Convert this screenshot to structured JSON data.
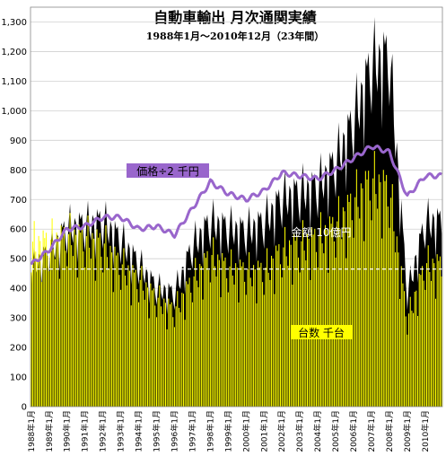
{
  "chart_data": {
    "type": "bar",
    "title": "自動車輸出 月次通関実績",
    "subtitle": "1988年1月～2010年12月（23年間）",
    "ylim": [
      0,
      1350
    ],
    "yticks": [
      "0",
      "100",
      "200",
      "300",
      "400",
      "500",
      "600",
      "700",
      "800",
      "900",
      "1,000",
      "1,100",
      "1,200",
      "1,300"
    ],
    "yticks_values": [
      0,
      100,
      200,
      300,
      400,
      500,
      600,
      700,
      800,
      900,
      1000,
      1100,
      1200,
      1300
    ],
    "xticks": [
      "1988年1月",
      "1989年1月",
      "1990年1月",
      "1991年1月",
      "1992年1月",
      "1993年1月",
      "1994年1月",
      "1995年1月",
      "1996年1月",
      "1997年1月",
      "1998年1月",
      "1999年1月",
      "2000年1月",
      "2001年1月",
      "2002年1月",
      "2003年1月",
      "2004年1月",
      "2005年1月",
      "2006年1月",
      "2007年1月",
      "2008年1月",
      "2009年1月",
      "2010年1月"
    ],
    "reference_line_value": 465,
    "colors": {
      "amount": "#000000",
      "units": "#ffff00",
      "price": "#9966cc",
      "price_label_bg": "#9966cc",
      "units_label_bg": "#ffff00",
      "reference_line": "#ffffff"
    },
    "annual_anchor_values": {
      "years": [
        1988,
        1989,
        1990,
        1991,
        1992,
        1993,
        1994,
        1995,
        1996,
        1997,
        1998,
        1999,
        2000,
        2001,
        2002,
        2003,
        2004,
        2005,
        2006,
        2007,
        2008,
        2009,
        2010
      ],
      "amount": [
        470,
        520,
        600,
        610,
        620,
        560,
        480,
        400,
        380,
        540,
        620,
        600,
        590,
        620,
        700,
        720,
        740,
        820,
        960,
        1150,
        1180,
        380,
        620
      ],
      "units": [
        540,
        545,
        565,
        560,
        540,
        470,
        420,
        360,
        320,
        420,
        500,
        460,
        450,
        450,
        520,
        540,
        560,
        600,
        680,
        750,
        720,
        290,
        470
      ],
      "price": [
        480,
        530,
        600,
        610,
        640,
        640,
        600,
        610,
        580,
        670,
        760,
        720,
        700,
        730,
        790,
        780,
        770,
        800,
        840,
        880,
        860,
        710,
        780
      ]
    },
    "series": [
      {
        "name": "金額 10億円"
      },
      {
        "name": "台数 千台"
      },
      {
        "name": "価格÷2 千円"
      }
    ]
  }
}
